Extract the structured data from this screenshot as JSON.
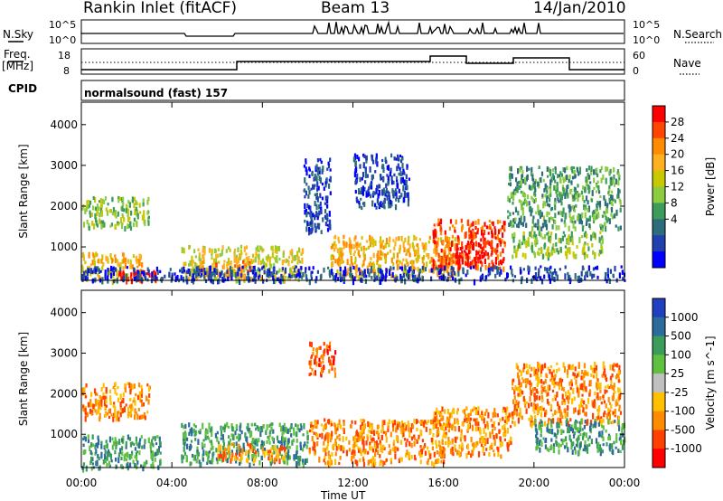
{
  "header": {
    "station": "Rankin Inlet (fitACF)",
    "beam": "Beam 13",
    "date": "14/Jan/2010"
  },
  "top_panels": {
    "nsky_label": "N.Sky",
    "nsky_ticks": [
      "10^5",
      "10^0"
    ],
    "nsearch_label": "N.Search",
    "nsearch_ticks": [
      "10^5",
      "10^0"
    ],
    "freq_label": "Freq.",
    "freq_unit": "[MHz]",
    "freq_ticks": [
      "18",
      "8"
    ],
    "nave_label": "Nave",
    "nave_ticks": [
      "60",
      "0"
    ],
    "cpid_label": "CPID",
    "cpid_value": "normalsound (fast) 157"
  },
  "chart_data": [
    {
      "type": "heatmap",
      "name": "power",
      "ylabel": "Slant Range [km]",
      "xlabel": "Time UT",
      "x_ticks": [
        "00:00",
        "04:00",
        "08:00",
        "12:00",
        "16:00",
        "20:00",
        "00:00"
      ],
      "xlim_hours": [
        0,
        24
      ],
      "y_ticks": [
        "1000",
        "2000",
        "3000",
        "4000"
      ],
      "ylim": [
        180,
        4550
      ],
      "colorbar": {
        "label": "Power [dB]",
        "ticks": [
          "28",
          "24",
          "20",
          "16",
          "12",
          "8",
          "4"
        ],
        "colors": [
          "#ff0000",
          "#ff4500",
          "#ff8c00",
          "#ffb020",
          "#c8c800",
          "#8ccc40",
          "#3c9c5c",
          "#2c6c7c",
          "#2040b0",
          "#0000ff"
        ]
      },
      "regions": [
        {
          "t0": 0.0,
          "t1": 3.0,
          "r0": 1500,
          "r1": 2250,
          "level": 5
        },
        {
          "t0": 0.0,
          "t1": 2.7,
          "r0": 200,
          "r1": 900,
          "level": 3
        },
        {
          "t0": 1.5,
          "t1": 3.3,
          "r0": 200,
          "r1": 450,
          "level": 0
        },
        {
          "t0": 4.4,
          "t1": 9.8,
          "r0": 220,
          "r1": 1050,
          "level": 4
        },
        {
          "t0": 5.0,
          "t1": 7.5,
          "r0": 300,
          "r1": 700,
          "level": 2
        },
        {
          "t0": 9.8,
          "t1": 11.0,
          "r0": 1400,
          "r1": 3200,
          "level": 8
        },
        {
          "t0": 11.0,
          "t1": 16.5,
          "r0": 300,
          "r1": 1300,
          "level": 3
        },
        {
          "t0": 12.0,
          "t1": 14.5,
          "r0": 2000,
          "r1": 3300,
          "level": 8
        },
        {
          "t0": 15.5,
          "t1": 18.7,
          "r0": 500,
          "r1": 1700,
          "level": 1
        },
        {
          "t0": 16.5,
          "t1": 18.3,
          "r0": 600,
          "r1": 1200,
          "level": 0
        },
        {
          "t0": 18.8,
          "t1": 23.8,
          "r0": 1500,
          "r1": 3000,
          "level": 6
        },
        {
          "t0": 19.0,
          "t1": 23.0,
          "r0": 800,
          "r1": 1400,
          "level": 5
        },
        {
          "t0": 0.0,
          "t1": 24.0,
          "r0": 200,
          "r1": 550,
          "level": 8
        }
      ]
    },
    {
      "type": "heatmap",
      "name": "velocity",
      "ylabel": "Slant Range [km]",
      "xlabel": "Time UT",
      "x_ticks": [
        "00:00",
        "04:00",
        "08:00",
        "12:00",
        "16:00",
        "20:00",
        "00:00"
      ],
      "xlim_hours": [
        0,
        24
      ],
      "y_ticks": [
        "1000",
        "2000",
        "3000",
        "4000"
      ],
      "ylim": [
        180,
        4550
      ],
      "colorbar": {
        "label": "Velocity [m s^-1]",
        "ticks": [
          "1000",
          "500",
          "100",
          "25",
          "-25",
          "-100",
          "-500",
          "-1000"
        ],
        "colors": [
          "#2040c0",
          "#2c6c9c",
          "#3c9c5c",
          "#60c040",
          "#c0c0c0",
          "#ffc000",
          "#ff8c00",
          "#ff4000",
          "#ff0000"
        ]
      },
      "regions": [
        {
          "t0": 0.0,
          "t1": 3.0,
          "r0": 1400,
          "r1": 2300,
          "level": 6
        },
        {
          "t0": 0.0,
          "t1": 3.5,
          "r0": 200,
          "r1": 1000,
          "level": 2
        },
        {
          "t0": 4.4,
          "t1": 10.0,
          "r0": 300,
          "r1": 1300,
          "level": 2
        },
        {
          "t0": 6.0,
          "t1": 9.0,
          "r0": 400,
          "r1": 800,
          "level": 6
        },
        {
          "t0": 10.0,
          "t1": 11.2,
          "r0": 2500,
          "r1": 3300,
          "level": 7
        },
        {
          "t0": 10.0,
          "t1": 16.0,
          "r0": 300,
          "r1": 1400,
          "level": 6
        },
        {
          "t0": 15.5,
          "t1": 19.0,
          "r0": 500,
          "r1": 1700,
          "level": 6
        },
        {
          "t0": 19.0,
          "t1": 23.8,
          "r0": 1300,
          "r1": 2800,
          "level": 6
        },
        {
          "t0": 20.0,
          "t1": 24.0,
          "r0": 600,
          "r1": 1400,
          "level": 2
        }
      ]
    }
  ]
}
